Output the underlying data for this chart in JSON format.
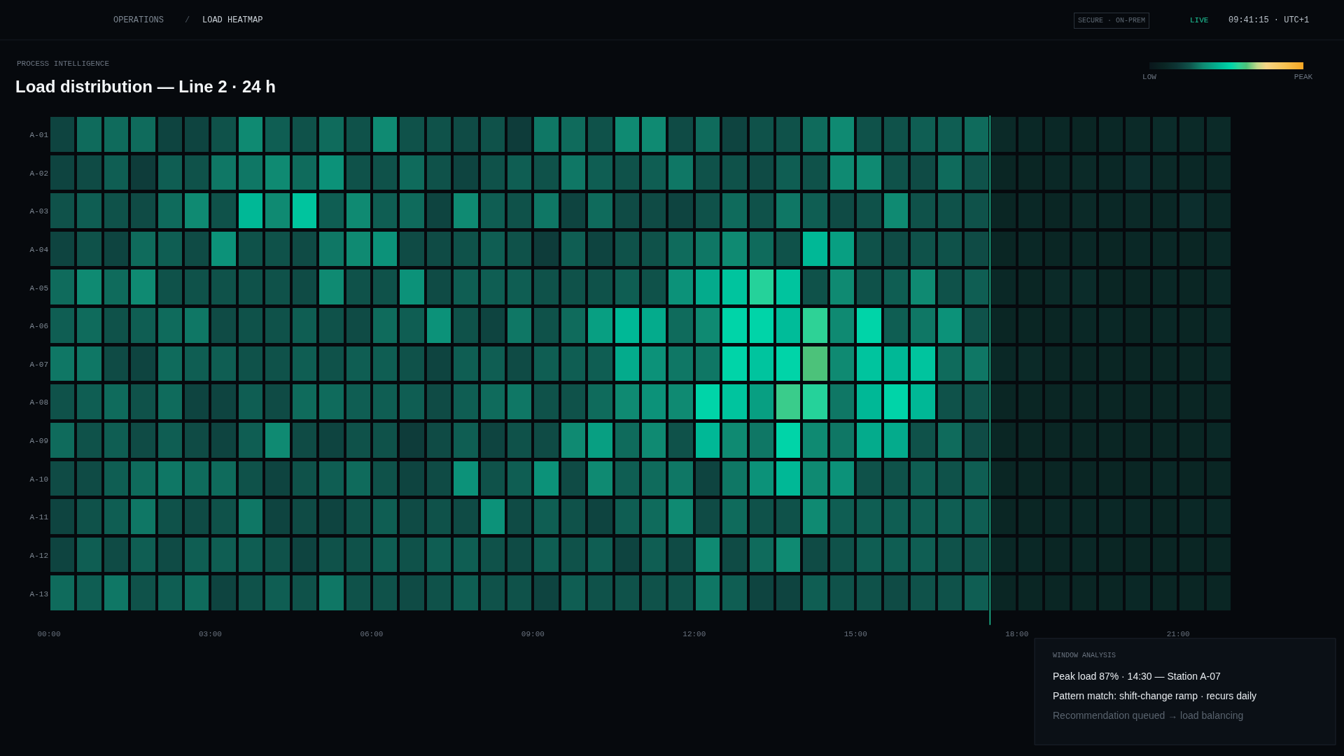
{
  "chart_data": {
    "type": "heatmap",
    "title": "Load distribution — Line 2 · 24 h",
    "subtitle": "PROCESS INTELLIGENCE",
    "x": [
      0.25,
      0.75,
      1.25,
      1.75,
      2.25,
      2.75,
      3.25,
      3.75,
      4.25,
      4.75,
      5.25,
      5.75,
      6.25,
      6.75,
      7.25,
      7.75,
      8.25,
      8.75,
      9.25,
      9.75,
      10.25,
      10.75,
      11.25,
      11.75,
      12.25,
      12.75,
      13.25,
      13.75,
      14.25,
      14.75,
      15.25,
      15.75,
      16.25,
      16.75,
      17.25,
      17.75,
      18.25,
      18.75,
      19.25,
      19.75,
      20.25,
      20.75,
      21.25,
      21.75
    ],
    "y_categories": [
      "A-01",
      "A-02",
      "A-03",
      "A-04",
      "A-05",
      "A-06",
      "A-07",
      "A-08",
      "A-09",
      "A-10",
      "A-11",
      "A-12",
      "A-13"
    ],
    "cells": [
      [
        22,
        30,
        30,
        30,
        22,
        22,
        26,
        35,
        28,
        26,
        30,
        26,
        35,
        26,
        26,
        24,
        26,
        20,
        32,
        30,
        26,
        35,
        35,
        24,
        30,
        22,
        26,
        26,
        30,
        35,
        26,
        26,
        28,
        28,
        30,
        12,
        11,
        11,
        10,
        11,
        12,
        13,
        12,
        12
      ],
      [
        22,
        24,
        28,
        20,
        28,
        26,
        32,
        32,
        35,
        30,
        37,
        26,
        26,
        30,
        26,
        22,
        26,
        28,
        26,
        32,
        28,
        26,
        28,
        32,
        26,
        26,
        24,
        28,
        26,
        35,
        35,
        26,
        24,
        30,
        26,
        10,
        10,
        11,
        12,
        11,
        14,
        12,
        11,
        11
      ],
      [
        26,
        28,
        26,
        24,
        30,
        35,
        26,
        46,
        35,
        49,
        28,
        35,
        28,
        30,
        22,
        35,
        28,
        26,
        32,
        22,
        30,
        24,
        24,
        22,
        26,
        30,
        26,
        32,
        28,
        24,
        26,
        35,
        26,
        26,
        26,
        10,
        11,
        10,
        12,
        11,
        12,
        11,
        14,
        11
      ],
      [
        22,
        26,
        22,
        30,
        28,
        24,
        37,
        26,
        26,
        24,
        32,
        35,
        37,
        24,
        24,
        26,
        28,
        26,
        20,
        28,
        22,
        26,
        26,
        30,
        32,
        35,
        30,
        26,
        46,
        40,
        26,
        24,
        26,
        26,
        24,
        10,
        11,
        10,
        11,
        10,
        11,
        11,
        10,
        11
      ],
      [
        30,
        35,
        30,
        35,
        26,
        26,
        26,
        26,
        26,
        24,
        35,
        26,
        26,
        37,
        24,
        28,
        28,
        28,
        26,
        26,
        26,
        28,
        26,
        37,
        43,
        49,
        57,
        49,
        26,
        35,
        26,
        28,
        35,
        26,
        28,
        11,
        10,
        12,
        13,
        10,
        10,
        11,
        10,
        11
      ],
      [
        28,
        30,
        26,
        28,
        30,
        32,
        24,
        26,
        26,
        28,
        26,
        24,
        30,
        28,
        37,
        26,
        22,
        32,
        26,
        30,
        40,
        46,
        43,
        30,
        35,
        53,
        53,
        47,
        58,
        35,
        53,
        28,
        32,
        37,
        26,
        10,
        10,
        10,
        11,
        11,
        10,
        11,
        10,
        11
      ],
      [
        32,
        32,
        24,
        22,
        30,
        28,
        28,
        26,
        26,
        28,
        26,
        28,
        28,
        26,
        22,
        28,
        28,
        24,
        28,
        28,
        28,
        43,
        37,
        32,
        32,
        53,
        49,
        53,
        63,
        35,
        49,
        46,
        49,
        30,
        32,
        11,
        12,
        10,
        10,
        10,
        10,
        10,
        10,
        11
      ],
      [
        26,
        28,
        30,
        26,
        30,
        22,
        22,
        28,
        24,
        30,
        30,
        28,
        28,
        28,
        24,
        28,
        30,
        32,
        26,
        26,
        30,
        35,
        37,
        35,
        53,
        49,
        40,
        60,
        57,
        32,
        46,
        53,
        46,
        26,
        26,
        10,
        10,
        10,
        10,
        10,
        10,
        10,
        10,
        10
      ],
      [
        30,
        26,
        28,
        24,
        28,
        24,
        22,
        28,
        35,
        24,
        22,
        26,
        26,
        20,
        24,
        28,
        22,
        26,
        24,
        35,
        40,
        30,
        35,
        26,
        46,
        35,
        32,
        53,
        35,
        32,
        43,
        43,
        26,
        30,
        24,
        10,
        10,
        10,
        10,
        10,
        10,
        10,
        10,
        11
      ],
      [
        24,
        24,
        28,
        30,
        32,
        30,
        30,
        26,
        22,
        26,
        28,
        30,
        26,
        22,
        24,
        37,
        26,
        28,
        37,
        24,
        35,
        28,
        30,
        32,
        22,
        32,
        37,
        46,
        35,
        37,
        26,
        26,
        28,
        26,
        28,
        10,
        10,
        10,
        10,
        10,
        10,
        11,
        10,
        10
      ],
      [
        22,
        26,
        28,
        32,
        26,
        24,
        26,
        32,
        22,
        24,
        22,
        26,
        28,
        24,
        26,
        24,
        37,
        24,
        28,
        26,
        22,
        28,
        30,
        35,
        24,
        30,
        26,
        26,
        35,
        28,
        28,
        28,
        28,
        28,
        28,
        10,
        10,
        11,
        11,
        11,
        11,
        10,
        11,
        11
      ],
      [
        22,
        28,
        24,
        28,
        24,
        28,
        28,
        28,
        26,
        22,
        26,
        26,
        28,
        26,
        28,
        28,
        26,
        24,
        28,
        26,
        28,
        22,
        28,
        24,
        35,
        24,
        30,
        35,
        24,
        26,
        28,
        28,
        28,
        26,
        26,
        11,
        11,
        10,
        11,
        10,
        10,
        10,
        10,
        10
      ],
      [
        30,
        28,
        32,
        26,
        28,
        30,
        22,
        26,
        28,
        26,
        32,
        26,
        26,
        24,
        26,
        28,
        26,
        26,
        22,
        28,
        26,
        26,
        26,
        26,
        32,
        28,
        22,
        22,
        28,
        26,
        26,
        24,
        26,
        26,
        28,
        10,
        10,
        10,
        10,
        10,
        11,
        10,
        10,
        10
      ]
    ],
    "xlim": [
      0,
      22
    ],
    "xticks": [
      {
        "value": 0,
        "label": "00:00"
      },
      {
        "value": 3,
        "label": "03:00"
      },
      {
        "value": 6,
        "label": "06:00"
      },
      {
        "value": 9,
        "label": "09:00"
      },
      {
        "value": 12,
        "label": "12:00"
      },
      {
        "value": 15,
        "label": "15:00"
      },
      {
        "value": 18,
        "label": "18:00"
      },
      {
        "value": 21,
        "label": "21:00"
      }
    ],
    "clim": [
      0,
      100
    ],
    "cticks": [
      {
        "value": 0,
        "label": "LOW"
      },
      {
        "value": 100,
        "label": "PEAK"
      }
    ],
    "ref_lines": [
      {
        "axis": "x",
        "value": 17.5,
        "color": "#1fc79a"
      }
    ],
    "annotations": [
      "OPERATIONS",
      "/",
      "LOAD HEATMAP",
      "SECURE · ON-PREM",
      "LIVE",
      "09:41:15 · UTC+1",
      "WINDOW ANALYSIS",
      "Peak load 87% · 14:30 — Station A-07",
      "Pattern match: shift-change ramp · recurs daily",
      "Recommendation queued → load balancing"
    ]
  }
}
